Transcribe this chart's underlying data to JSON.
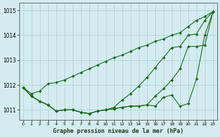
{
  "x": [
    0,
    1,
    2,
    3,
    4,
    5,
    6,
    7,
    8,
    9,
    10,
    11,
    12,
    13,
    14,
    15,
    16,
    17,
    18,
    19,
    20,
    21,
    22,
    23
  ],
  "line_straight": [
    1011.9,
    1011.65,
    1011.75,
    1012.05,
    1012.1,
    1012.2,
    1012.35,
    1012.5,
    1012.65,
    1012.8,
    1012.95,
    1013.1,
    1013.2,
    1013.35,
    1013.5,
    1013.6,
    1013.75,
    1013.85,
    1014.0,
    1014.1,
    1014.35,
    1014.6,
    1014.75,
    1014.95
  ],
  "line_top": [
    1011.9,
    1011.55,
    1011.35,
    1011.2,
    1010.95,
    1011.0,
    1011.0,
    1010.9,
    1010.85,
    1010.95,
    1011.0,
    1011.1,
    1011.4,
    1011.65,
    1011.95,
    1012.3,
    1012.7,
    1013.1,
    1013.5,
    1013.55,
    1014.0,
    1014.05,
    1014.6,
    1014.95
  ],
  "line_mid": [
    1011.9,
    1011.55,
    1011.35,
    1011.2,
    1010.95,
    1011.0,
    1011.0,
    1010.9,
    1010.85,
    1010.95,
    1011.0,
    1011.05,
    1011.1,
    1011.15,
    1011.15,
    1011.2,
    1011.55,
    1011.85,
    1012.2,
    1012.65,
    1013.55,
    1013.55,
    1013.6,
    1014.95
  ],
  "line_bot": [
    1011.9,
    1011.55,
    1011.35,
    1011.2,
    1010.95,
    1011.0,
    1011.0,
    1010.9,
    1010.85,
    1010.95,
    1011.0,
    1011.05,
    1011.1,
    1011.15,
    1011.15,
    1011.2,
    1011.15,
    1011.5,
    1011.6,
    1011.15,
    1011.25,
    1012.25,
    1014.0,
    1014.95
  ],
  "ylim": [
    1010.6,
    1015.3
  ],
  "yticks": [
    1011,
    1012,
    1013,
    1014,
    1015
  ],
  "xlabel": "Graphe pression niveau de la mer (hPa)",
  "line_color": "#1a6b1a",
  "bg_color": "#d4ecf0",
  "grid_color": "#aacdd5"
}
